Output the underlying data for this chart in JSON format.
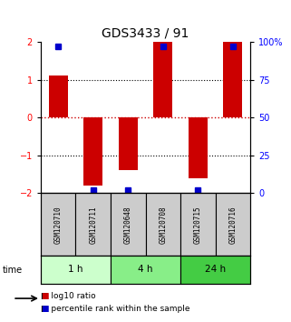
{
  "title": "GDS3433 / 91",
  "samples": [
    "GSM120710",
    "GSM120711",
    "GSM120648",
    "GSM120708",
    "GSM120715",
    "GSM120716"
  ],
  "log10_ratio": [
    1.1,
    -1.8,
    -1.4,
    2.0,
    -1.6,
    2.0
  ],
  "percentile_rank": [
    97,
    2,
    2,
    97,
    2,
    97
  ],
  "ylim_left": [
    -2,
    2
  ],
  "ylim_right": [
    0,
    100
  ],
  "yticks_left": [
    -2,
    -1,
    0,
    1,
    2
  ],
  "yticks_right": [
    0,
    25,
    50,
    75,
    100
  ],
  "yticklabels_right": [
    "0",
    "25",
    "50",
    "75",
    "100%"
  ],
  "bar_color": "#cc0000",
  "dot_color": "#0000cc",
  "time_groups": [
    {
      "label": "1 h",
      "samples": [
        0,
        1
      ],
      "color": "#ccffcc"
    },
    {
      "label": "4 h",
      "samples": [
        2,
        3
      ],
      "color": "#88ee88"
    },
    {
      "label": "24 h",
      "samples": [
        4,
        5
      ],
      "color": "#44cc44"
    }
  ],
  "legend_items": [
    {
      "label": "log10 ratio",
      "color": "#cc0000"
    },
    {
      "label": "percentile rank within the sample",
      "color": "#0000cc"
    }
  ],
  "sample_label_color": "#cccccc",
  "bar_width": 0.55,
  "dot_size": 5
}
